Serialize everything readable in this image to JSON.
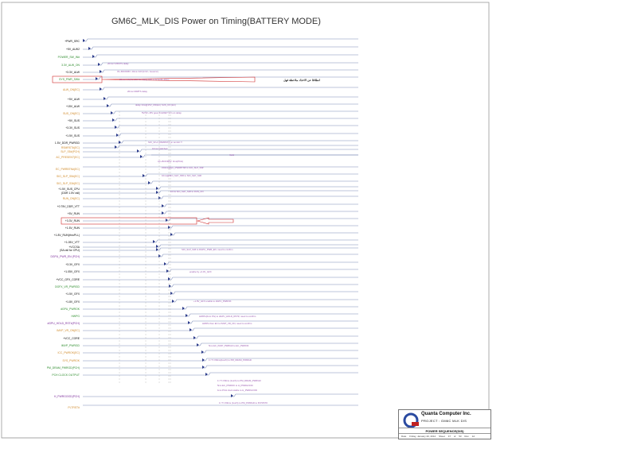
{
  "title": "GM6C_MLK_DIS Power on Timing(BATTERY MODE)",
  "signals": [
    {
      "label": "+PWR_SRC",
      "color": "#000000"
    },
    {
      "label": "+5V_ALW2",
      "color": "#000000"
    },
    {
      "label": "POWER_SW_IN#",
      "color": "#2a8a2a"
    },
    {
      "label": "3.3V_ALW_ON",
      "color": "#2a8a2a"
    },
    {
      "label": "+3.3V_ALW",
      "color": "#000000"
    },
    {
      "label": "SYS_PWR_SW#",
      "color": "#2a8a2a"
    },
    {
      "label": "ALW_ON(EC)",
      "color": "#d08a2a"
    },
    {
      "label": "+5V_ALW",
      "color": "#000000"
    },
    {
      "label": "+15V_ALW",
      "color": "#000000"
    },
    {
      "label": "SUS_ON(EC)",
      "color": "#d08a2a"
    },
    {
      "label": "+5V_SUS",
      "color": "#000000"
    },
    {
      "label": "+3.3V_SUS",
      "color": "#000000"
    },
    {
      "label": "+1.5V_SUS",
      "color": "#000000"
    },
    {
      "label": "1.5V_DDR_PWRGD",
      "color": "#000000"
    },
    {
      "label": "RSMRST#(EC)",
      "color": "#d08a2a"
    },
    {
      "label": "SLP_S5#(PCH)",
      "color": "#d08a2a"
    },
    {
      "label": "AC_PRESENT(EC)",
      "color": "#d08a2a"
    },
    {
      "label": "EC_PWRBTN#(EC)",
      "color": "#d08a2a"
    },
    {
      "label": "SIO_SLP_S5#(EC)",
      "color": "#d08a2a"
    },
    {
      "label": "SIO_SLP_S3#(EC)",
      "color": "#d08a2a"
    },
    {
      "label": "+1.5V_SUS_CPU",
      "color": "#000000"
    },
    {
      "label": "(DDR 1.5V rail)",
      "color": "#000000"
    },
    {
      "label": "RUN_ON(EC)",
      "color": "#d08a2a"
    },
    {
      "label": "+0.75V_DDR_VTT",
      "color": "#000000"
    },
    {
      "label": "+5V_RUN",
      "color": "#000000"
    },
    {
      "label": "+3.3V_RUN",
      "color": "#000000"
    },
    {
      "label": "+1.5V_RUN",
      "color": "#000000"
    },
    {
      "label": "+1.8V_RUN(thruPLL)",
      "color": "#000000"
    },
    {
      "label": "+1.05V_VTT",
      "color": "#000000"
    },
    {
      "label": "+VCCSA",
      "color": "#000000"
    },
    {
      "label": "(SA rail for CPU)",
      "color": "#000000"
    },
    {
      "label": "DGPU_PWR_EN (PCH)",
      "color": "#7a2a9a"
    },
    {
      "label": "+3.3V_GFX",
      "color": "#000000"
    },
    {
      "label": "+1.05V_GFX",
      "color": "#000000"
    },
    {
      "label": "+VCC_GFX_CORE",
      "color": "#000000"
    },
    {
      "label": "DGFX_VR_PWRGD",
      "color": "#2a8a2a"
    },
    {
      "label": "+1.5V_GFX",
      "color": "#000000"
    },
    {
      "label": "+1.8V_GFX",
      "color": "#000000"
    },
    {
      "label": "dGPU_PWROK",
      "color": "#2a8a2a"
    },
    {
      "label": "HWPG",
      "color": "#2a8a2a"
    },
    {
      "label": "dGPU_HOLD_RST#(PCH)",
      "color": "#7a2a9a"
    },
    {
      "label": "IMVP_VR_ON(EC)",
      "color": "#d08a2a"
    },
    {
      "label": "+VCC_CORE",
      "color": "#000000"
    },
    {
      "label": "IMVP_PWRGD",
      "color": "#2a8a2a"
    },
    {
      "label": "ICC_PWROK(EC)",
      "color": "#d08a2a"
    },
    {
      "label": "SYS_PWROK",
      "color": "#d08a2a"
    },
    {
      "label": "PM_DRAM_PWRGD(PCH)",
      "color": "#2a8a2a"
    },
    {
      "label": "PCH CLOCK OUTPUT",
      "color": "#2a8a2a"
    },
    {
      "label": "H_PWRGOOD(PCH)",
      "color": "#7a2a9a"
    },
    {
      "label": "PLTRST#",
      "color": "#d08a2a"
    }
  ],
  "annotations": [
    "20ms<=25MTS delay",
    "3V~BOOM5V: 20ms<10V(3.3V~ boost kr)",
    "20ms<>3V,5V and 5V: delay with 3.3V Hold~20ms",
    "20ms<20MTS delay",
    "delay 3ms@15V_ON(EC) SUS_ON (EC)",
    "5V/3V~15V goes limit/FET turn on delay",
    "SIO_3V+3 RSMRST# on ten EC T.",
    "10ms<switched",
    "Valid",
    "AC~BOOM5V: 3ms(PCH)",
    "150ms@EC_PWRBTN# to SIO_SLP_S5#",
    "10ms@SIO_SLP_S5# to SIO_SLP_S3#",
    "10ms SIO_SLP_S3# to RUN_ON",
    "SIO_SLP_S3# to DGPU_PWR_EN, need to confirm",
    "enable by +3.3V_GFX",
    "+1.8V_GFX enable to dGPU_PWROK",
    "HWPG(from PG) to dGPU_HOLD_RST#, need to confirm",
    "HWPG then EC to IMVP_VR_ON, need to confirm",
    "5ms EC_IMVP_PWRGD to EC_PWROK",
    "1>T>=99ms(1us/h) to PM_DRAM_PWRGD",
    "1>T>=99ms (1us/h) to PM_DRAM_PWRGD",
    "5ms EC_PWROK to H_PWRGOOD",
    "1ms PCH clock stable to H_PWRGOOD",
    "1>T>=99ms (1us/h) to PM_PWRGD to PLTRST#"
  ],
  "callout_note": "انطلاقا عن الاخذاد ملاحظة فهل",
  "title_block": {
    "company": "Quanta Computer Inc.",
    "project": "PROJECT : GM6C MLK DIS",
    "sheet_title": "POWER SEQUENCE(DIS)",
    "size_label": "Size",
    "doc_label": "Document Number",
    "rev_label": "Rev",
    "date_label": "Date",
    "date": "Friday, January 20, 2012",
    "sheet_label": "Sheet",
    "sheet_no": "47",
    "of_label": "of",
    "sheet_total": "53",
    "rev": "1A"
  },
  "colors": {
    "trace": "#7a8ab8",
    "arrow": "#2a3a8a",
    "highlight": "#d02a2a",
    "note": "#9a5ab0"
  }
}
